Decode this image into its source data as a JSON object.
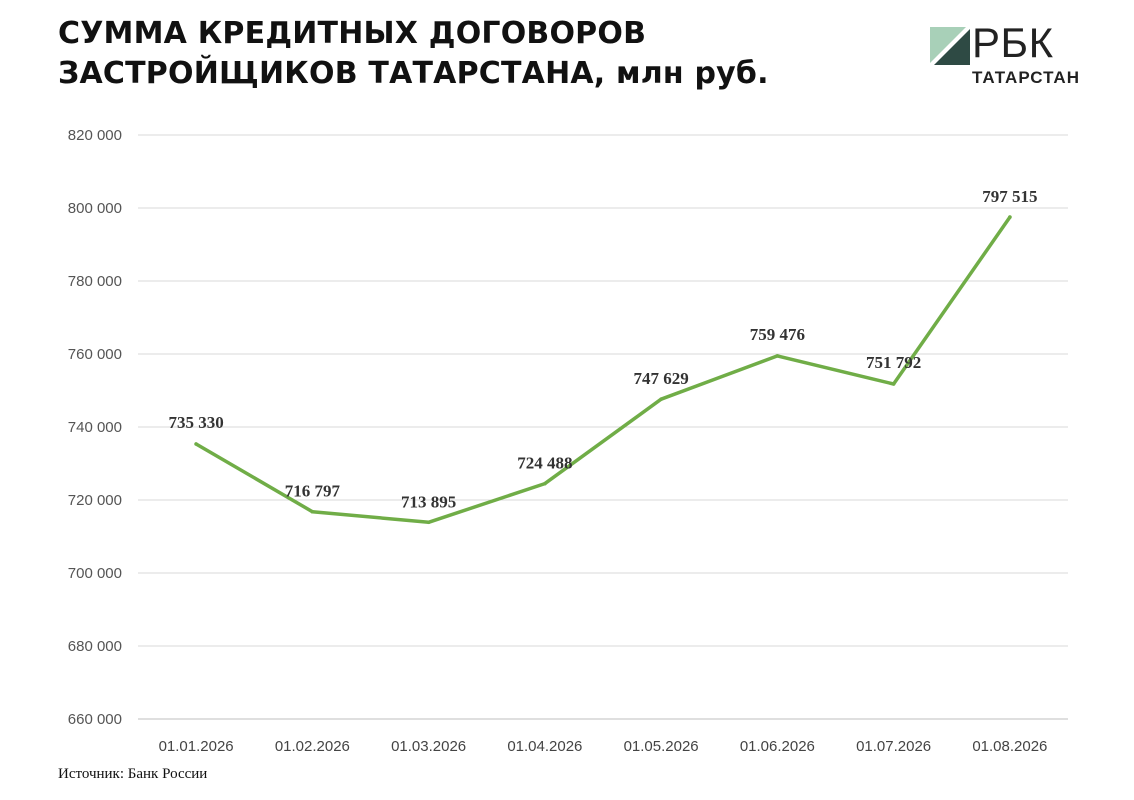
{
  "header": {
    "title_line1": "СУММА КРЕДИТНЫХ ДОГОВОРОВ",
    "title_line2": "ЗАСТРОЙЩИКОВ ТАТАРСТАНА, млн руб."
  },
  "logo": {
    "word": "РБК",
    "region": "ТАТАРСТАН",
    "colors": {
      "dark": "#2e4a44",
      "light": "#a8d0b8"
    }
  },
  "footer": {
    "source": "Источник: Банк России"
  },
  "chart_data": {
    "type": "line",
    "title": "СУММА КРЕДИТНЫХ ДОГОВОРОВ ЗАСТРОЙЩИКОВ ТАТАРСТАНА, млн руб.",
    "categories": [
      "01.01.2026",
      "01.02.2026",
      "01.03.2026",
      "01.04.2026",
      "01.05.2026",
      "01.06.2026",
      "01.07.2026",
      "01.08.2026"
    ],
    "series": [
      {
        "values": [
          735330,
          716797,
          713895,
          724488,
          747629,
          759476,
          751792,
          797515
        ],
        "color": "#70ad47"
      }
    ],
    "data_labels": [
      "735 330",
      "716 797",
      "713 895",
      "724 488",
      "747 629",
      "759 476",
      "751 792",
      "797 515"
    ],
    "ylim": [
      660000,
      820000
    ],
    "yticks": [
      660000,
      680000,
      700000,
      720000,
      740000,
      760000,
      780000,
      800000,
      820000
    ],
    "ytick_labels": [
      "660 000",
      "680 000",
      "700 000",
      "720 000",
      "740 000",
      "760 000",
      "780 000",
      "800 000",
      "820 000"
    ],
    "xlabel": "",
    "ylabel": "",
    "grid": true,
    "gridline_color": "#d9d9d9",
    "legend": "none"
  }
}
